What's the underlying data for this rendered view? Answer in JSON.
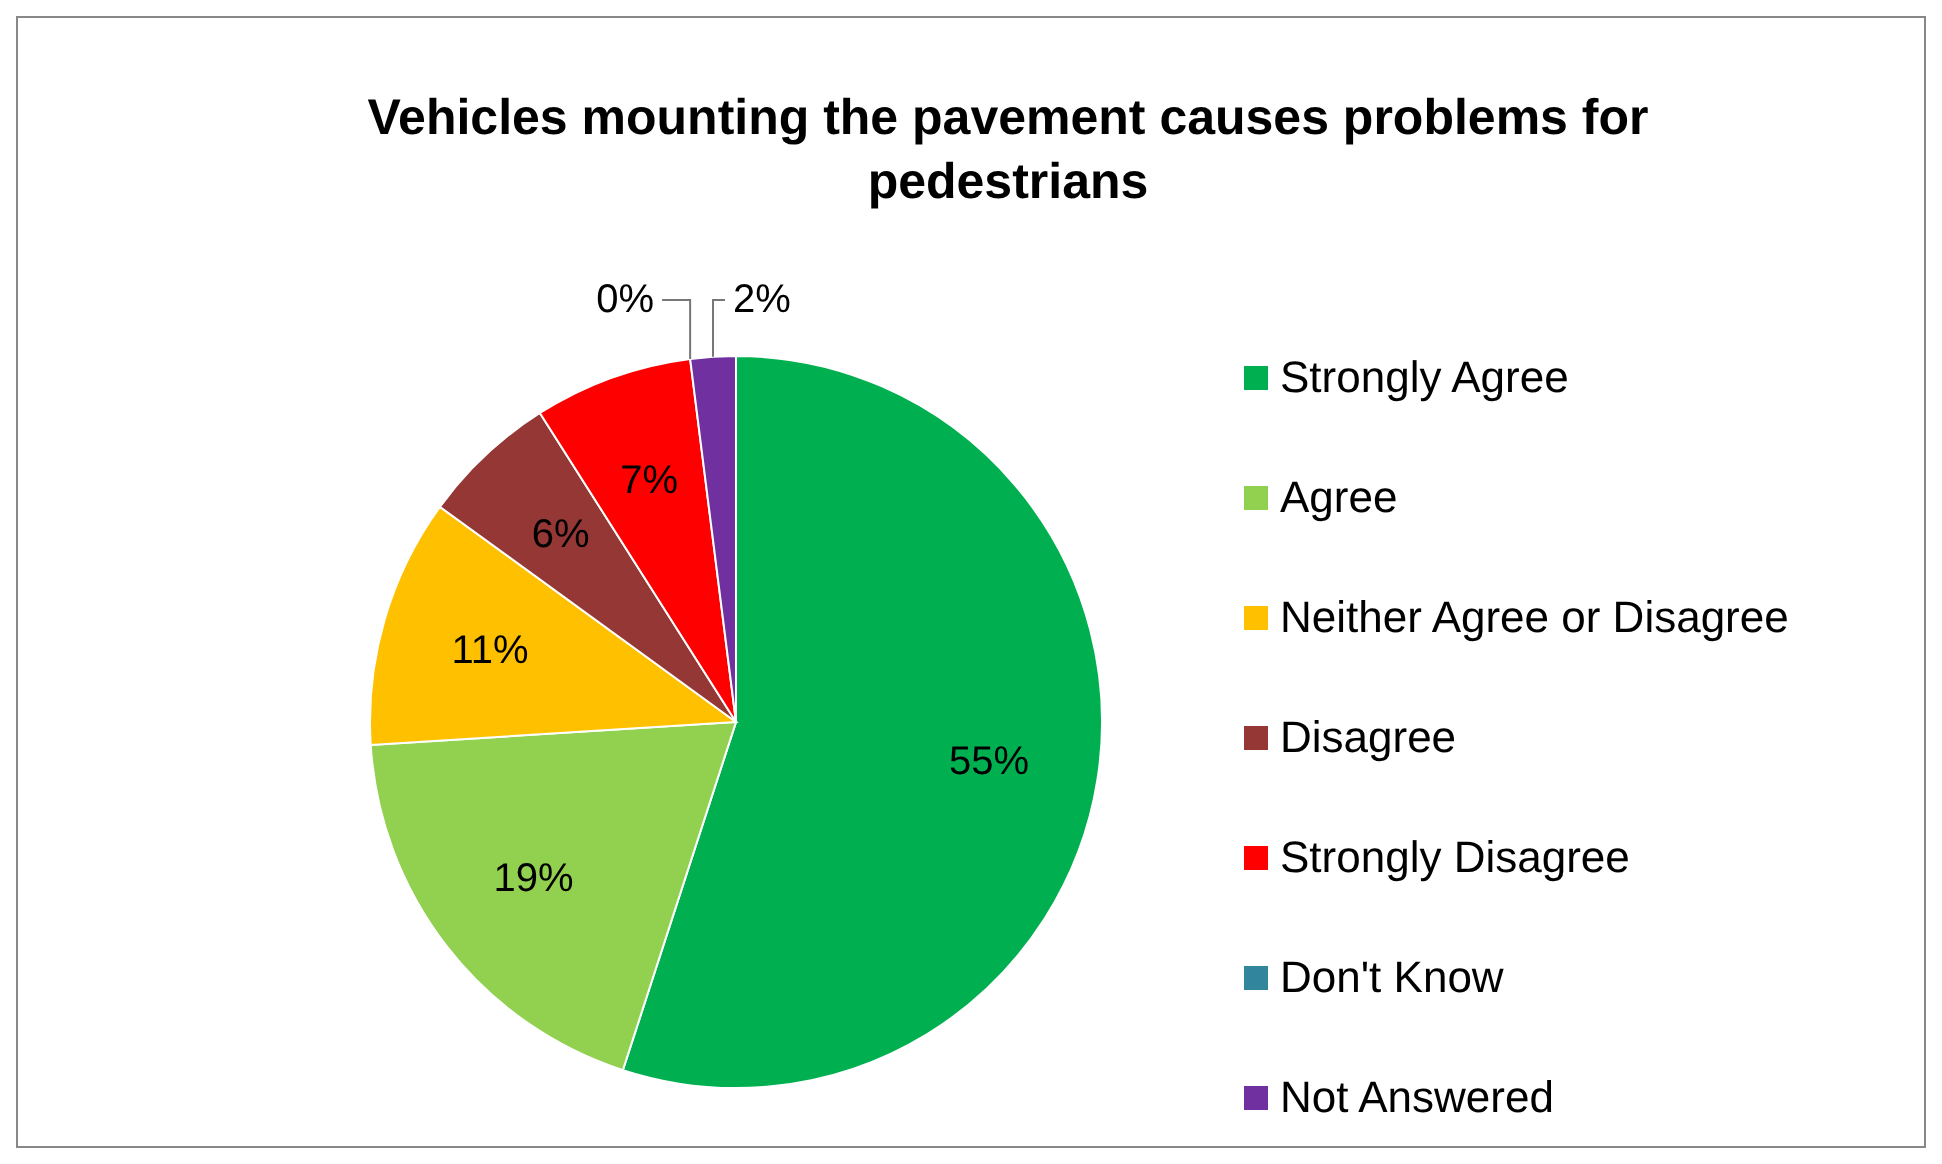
{
  "chart_data": {
    "type": "pie",
    "title": "Vehicles mounting the pavement causes problems for pedestrians",
    "categories": [
      "Strongly Agree",
      "Agree",
      "Neither Agree or Disagree",
      "Disagree",
      "Strongly Disagree",
      "Don't Know",
      "Not Answered"
    ],
    "values": [
      55,
      19,
      11,
      6,
      7,
      0,
      2
    ],
    "colors": [
      "#00b050",
      "#92d050",
      "#ffc000",
      "#953735",
      "#ff0000",
      "#31859c",
      "#7030a0"
    ],
    "value_labels": [
      "55%",
      "19%",
      "11%",
      "6%",
      "7%",
      "0%",
      "2%"
    ],
    "legend": "right"
  }
}
